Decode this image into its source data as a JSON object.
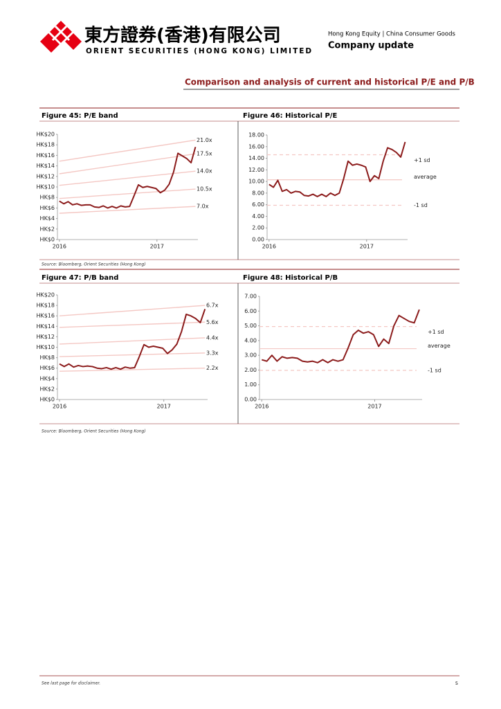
{
  "header": {
    "company_cn": "東方證券(香港)有限公司",
    "company_en": "ORIENT SECURITIES (HONG KONG) LIMITED",
    "category": "Hong Kong Equity | China Consumer Goods",
    "doc_type": "Company update"
  },
  "section_title": "Comparison and analysis of current and historical P/E and P/B",
  "sources": [
    "Source: Bloomberg, Orient Securities (Hong Kong)",
    "Source: Bloomberg, Orient Securities (Hong Kong)"
  ],
  "footer": {
    "disclaimer": "See last page for disclaimer.",
    "page": "5"
  },
  "chart_data": [
    {
      "type": "line",
      "title": "Figure 45: P/E band",
      "x": [
        2016,
        2016.045,
        2016.09,
        2016.135,
        2016.18,
        2016.225,
        2016.27,
        2016.315,
        2016.36,
        2016.405,
        2016.45,
        2016.495,
        2016.54,
        2016.585,
        2016.63,
        2016.675,
        2016.72,
        2016.765,
        2016.81,
        2016.855,
        2016.9,
        2016.945,
        2016.99,
        2017.035,
        2017.08,
        2017.125,
        2017.17,
        2017.215,
        2017.26,
        2017.305,
        2017.35,
        2017.395
      ],
      "series": [
        {
          "color": "#8b1a1a",
          "values": [
            7.3,
            6.8,
            7.2,
            6.6,
            6.8,
            6.5,
            6.6,
            6.6,
            6.2,
            6.1,
            6.4,
            6.0,
            6.3,
            6.0,
            6.4,
            6.2,
            6.3,
            8.3,
            10.4,
            9.9,
            10.1,
            9.9,
            9.7,
            8.9,
            9.4,
            10.5,
            12.8,
            16.4,
            15.9,
            15.4,
            14.6,
            17.6
          ]
        }
      ],
      "bands": [
        {
          "name": "21.0x",
          "color": "#f4c7c3",
          "x": [
            2016,
            2017.395
          ],
          "values": [
            14.9,
            18.9
          ]
        },
        {
          "name": "17.5x",
          "color": "#f4c7c3",
          "x": [
            2016,
            2017.395
          ],
          "values": [
            12.5,
            16.3
          ]
        },
        {
          "name": "14.0x",
          "color": "#f4c7c3",
          "x": [
            2016,
            2017.395
          ],
          "values": [
            10.3,
            13.0
          ]
        },
        {
          "name": "10.5x",
          "color": "#f4c7c3",
          "x": [
            2016,
            2017.395
          ],
          "values": [
            7.8,
            9.6
          ]
        },
        {
          "name": "7.0x",
          "color": "#f4c7c3",
          "x": [
            2016,
            2017.395
          ],
          "values": [
            5.0,
            6.3
          ]
        }
      ],
      "xlim": [
        2015.98,
        2017.42
      ],
      "xticks": [
        2016,
        2017
      ],
      "ylim": [
        0,
        20
      ],
      "yticks": [
        {
          "value": 0,
          "label": "HK$0"
        },
        {
          "value": 2,
          "label": "HK$2"
        },
        {
          "value": 4,
          "label": "HK$4"
        },
        {
          "value": 6,
          "label": "HK$6"
        },
        {
          "value": 8,
          "label": "HK$8"
        },
        {
          "value": 10,
          "label": "HK$10"
        },
        {
          "value": 12,
          "label": "HK$12"
        },
        {
          "value": 14,
          "label": "HK$14"
        },
        {
          "value": 16,
          "label": "HK$16"
        },
        {
          "value": 18,
          "label": "HK$18"
        },
        {
          "value": 20,
          "label": "HK$20"
        }
      ]
    },
    {
      "type": "line",
      "title": "Figure 46: Historical P/E",
      "x": [
        2016,
        2016.045,
        2016.09,
        2016.135,
        2016.18,
        2016.225,
        2016.27,
        2016.315,
        2016.36,
        2016.405,
        2016.45,
        2016.495,
        2016.54,
        2016.585,
        2016.63,
        2016.675,
        2016.72,
        2016.765,
        2016.81,
        2016.855,
        2016.9,
        2016.945,
        2016.99,
        2017.035,
        2017.08,
        2017.125,
        2017.17,
        2017.215,
        2017.26,
        2017.305,
        2017.35,
        2017.395
      ],
      "series": [
        {
          "color": "#8b1a1a",
          "values": [
            9.5,
            9.0,
            10.2,
            8.3,
            8.6,
            8.0,
            8.3,
            8.2,
            7.6,
            7.5,
            7.8,
            7.4,
            7.8,
            7.4,
            8.0,
            7.6,
            8.0,
            10.5,
            13.5,
            12.8,
            13.0,
            12.8,
            12.5,
            10.0,
            11.0,
            10.5,
            13.5,
            15.8,
            15.5,
            15.0,
            14.2,
            16.8
          ]
        }
      ],
      "reference_lines": [
        {
          "name": "+1 sd",
          "value": 14.6,
          "color": "#f4c7c3",
          "dashed": true
        },
        {
          "name": "average",
          "value": 10.3,
          "color": "#f4c7c3",
          "dashed": false
        },
        {
          "name": "-1 sd",
          "value": 5.9,
          "color": "#f4c7c3",
          "dashed": true
        }
      ],
      "xlim": [
        2015.98,
        2017.42
      ],
      "xticks": [
        2016,
        2017
      ],
      "ylim": [
        0,
        18
      ],
      "yticks": [
        {
          "value": 0,
          "label": "0.00"
        },
        {
          "value": 2,
          "label": "2.00"
        },
        {
          "value": 4,
          "label": "4.00"
        },
        {
          "value": 6,
          "label": "6.00"
        },
        {
          "value": 8,
          "label": "8.00"
        },
        {
          "value": 10,
          "label": "10.00"
        },
        {
          "value": 12,
          "label": "12.00"
        },
        {
          "value": 14,
          "label": "14.00"
        },
        {
          "value": 16,
          "label": "16.00"
        },
        {
          "value": 18,
          "label": "18.00"
        }
      ]
    },
    {
      "type": "line",
      "title": "Figure 47: P/B band",
      "x": [
        2016,
        2016.045,
        2016.09,
        2016.135,
        2016.18,
        2016.225,
        2016.27,
        2016.315,
        2016.36,
        2016.405,
        2016.45,
        2016.495,
        2016.54,
        2016.585,
        2016.63,
        2016.675,
        2016.72,
        2016.765,
        2016.81,
        2016.855,
        2016.9,
        2016.945,
        2016.99,
        2017.035,
        2017.08,
        2017.125,
        2017.17,
        2017.215,
        2017.26,
        2017.305,
        2017.35,
        2017.395
      ],
      "series": [
        {
          "color": "#8b1a1a",
          "values": [
            6.8,
            6.3,
            6.8,
            6.2,
            6.5,
            6.3,
            6.4,
            6.3,
            6.0,
            5.9,
            6.1,
            5.8,
            6.1,
            5.8,
            6.2,
            6.0,
            6.1,
            8.2,
            10.5,
            10.0,
            10.2,
            10.0,
            9.8,
            8.8,
            9.5,
            10.6,
            13.0,
            16.3,
            16.0,
            15.5,
            14.7,
            17.3
          ]
        }
      ],
      "bands": [
        {
          "name": "6.7x",
          "color": "#f4c7c3",
          "x": [
            2016,
            2017.395
          ],
          "values": [
            16.0,
            18.0
          ]
        },
        {
          "name": "5.6x",
          "color": "#f4c7c3",
          "x": [
            2016,
            2017.395
          ],
          "values": [
            13.8,
            14.8
          ]
        },
        {
          "name": "4.4x",
          "color": "#f4c7c3",
          "x": [
            2016,
            2017.395
          ],
          "values": [
            10.6,
            11.8
          ]
        },
        {
          "name": "3.3x",
          "color": "#f4c7c3",
          "x": [
            2016,
            2017.395
          ],
          "values": [
            8.2,
            8.9
          ]
        },
        {
          "name": "2.2x",
          "color": "#f4c7c3",
          "x": [
            2016,
            2017.395
          ],
          "values": [
            5.4,
            6.0
          ]
        }
      ],
      "xlim": [
        2015.98,
        2017.42
      ],
      "xticks": [
        2016,
        2017
      ],
      "ylim": [
        0,
        20
      ],
      "yticks": [
        {
          "value": 0,
          "label": "HK$0"
        },
        {
          "value": 2,
          "label": "HK$2"
        },
        {
          "value": 4,
          "label": "HK$4"
        },
        {
          "value": 6,
          "label": "HK$6"
        },
        {
          "value": 8,
          "label": "HK$8"
        },
        {
          "value": 10,
          "label": "HK$10"
        },
        {
          "value": 12,
          "label": "HK$12"
        },
        {
          "value": 14,
          "label": "HK$14"
        },
        {
          "value": 16,
          "label": "HK$16"
        },
        {
          "value": 18,
          "label": "HK$18"
        },
        {
          "value": 20,
          "label": "HK$20"
        }
      ]
    },
    {
      "type": "line",
      "title": "Figure 48: Historical P/B",
      "x": [
        2016,
        2016.045,
        2016.09,
        2016.135,
        2016.18,
        2016.225,
        2016.27,
        2016.315,
        2016.36,
        2016.405,
        2016.45,
        2016.495,
        2016.54,
        2016.585,
        2016.63,
        2016.675,
        2016.72,
        2016.765,
        2016.81,
        2016.855,
        2016.9,
        2016.945,
        2016.99,
        2017.035,
        2017.08,
        2017.125,
        2017.17,
        2017.215,
        2017.26,
        2017.305,
        2017.35,
        2017.395
      ],
      "series": [
        {
          "color": "#8b1a1a",
          "values": [
            2.7,
            2.6,
            3.0,
            2.6,
            2.9,
            2.8,
            2.85,
            2.8,
            2.6,
            2.55,
            2.6,
            2.5,
            2.7,
            2.5,
            2.7,
            2.6,
            2.7,
            3.5,
            4.4,
            4.7,
            4.5,
            4.6,
            4.4,
            3.6,
            4.1,
            3.8,
            5.0,
            5.7,
            5.5,
            5.3,
            5.2,
            6.1
          ]
        }
      ],
      "reference_lines": [
        {
          "name": "+1 sd",
          "value": 4.95,
          "color": "#f4c7c3",
          "dashed": true
        },
        {
          "name": "average",
          "value": 3.45,
          "color": "#f4c7c3",
          "dashed": false
        },
        {
          "name": "-1 sd",
          "value": 1.98,
          "color": "#f4c7c3",
          "dashed": true
        }
      ],
      "xlim": [
        2015.98,
        2017.42
      ],
      "xticks": [
        2016,
        2017
      ],
      "ylim": [
        0,
        7
      ],
      "yticks": [
        {
          "value": 0,
          "label": "0.00"
        },
        {
          "value": 1,
          "label": "1.00"
        },
        {
          "value": 2,
          "label": "2.00"
        },
        {
          "value": 3,
          "label": "3.00"
        },
        {
          "value": 4,
          "label": "4.00"
        },
        {
          "value": 5,
          "label": "5.00"
        },
        {
          "value": 6,
          "label": "6.00"
        },
        {
          "value": 7,
          "label": "7.00"
        }
      ]
    }
  ]
}
